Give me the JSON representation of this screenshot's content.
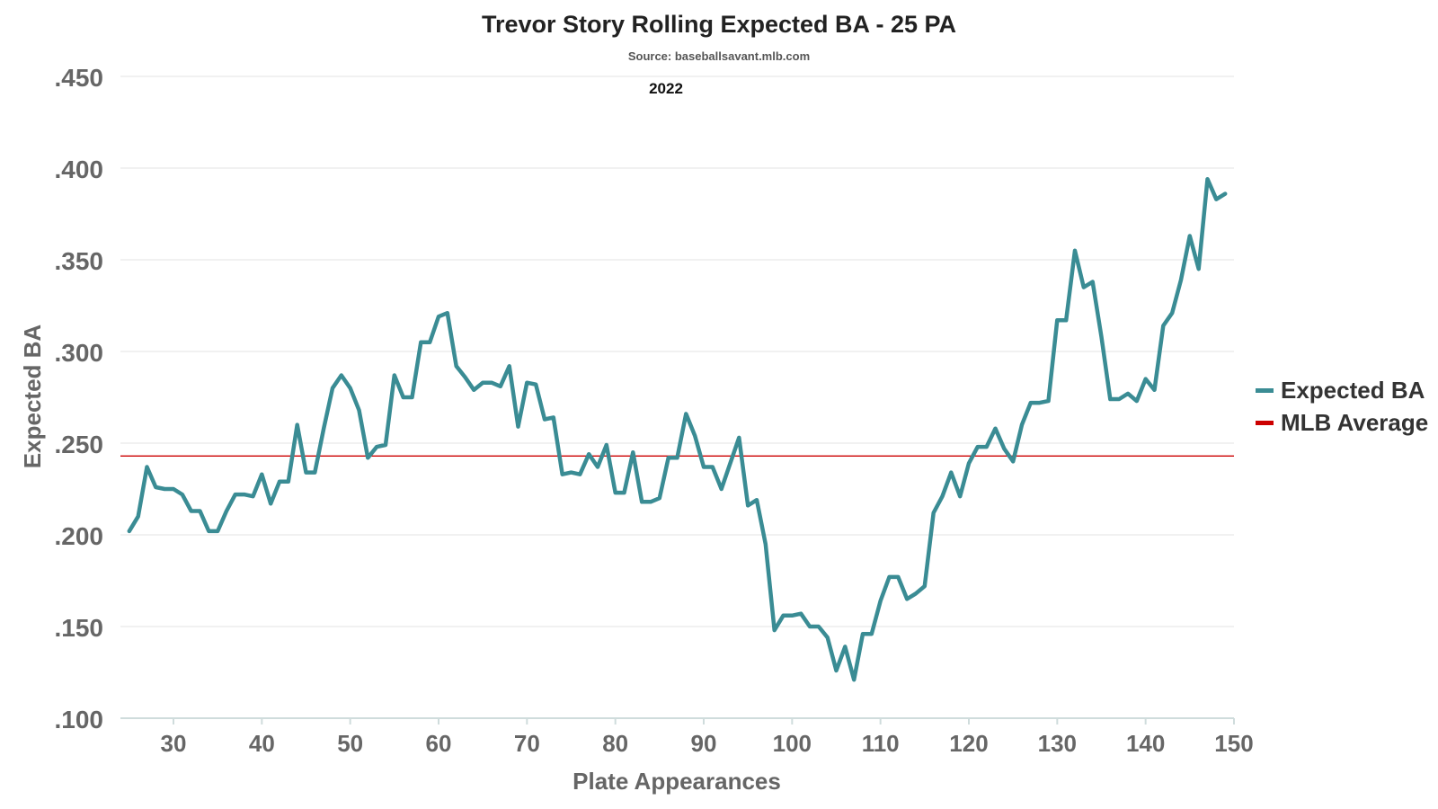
{
  "chart_data": {
    "type": "line",
    "title": "Trevor Story Rolling Expected BA - 25 PA",
    "subtitle": "Source: baseballsavant.mlb.com",
    "annotation": "2022",
    "xlabel": "Plate Appearances",
    "ylabel": "Expected BA",
    "xlim": [
      24,
      150
    ],
    "ylim": [
      0.1,
      0.45
    ],
    "xticks": [
      30,
      40,
      50,
      60,
      70,
      80,
      90,
      100,
      110,
      120,
      130,
      140,
      150
    ],
    "xtick_labels": [
      "30",
      "40",
      "50",
      "60",
      "70",
      "80",
      "90",
      "100",
      "110",
      "120",
      "130",
      "140",
      "150"
    ],
    "yticks": [
      0.1,
      0.15,
      0.2,
      0.25,
      0.3,
      0.35,
      0.4,
      0.45
    ],
    "ytick_labels": [
      ".100",
      ".150",
      ".200",
      ".250",
      ".300",
      ".350",
      ".400",
      ".450"
    ],
    "grid": true,
    "legend_position": "right",
    "series": [
      {
        "name": "Expected BA",
        "color": "#3a8c94",
        "x": [
          25,
          26,
          27,
          28,
          29,
          30,
          31,
          32,
          33,
          34,
          35,
          36,
          37,
          38,
          39,
          40,
          41,
          42,
          43,
          44,
          45,
          46,
          47,
          48,
          49,
          50,
          51,
          52,
          53,
          54,
          55,
          56,
          57,
          58,
          59,
          60,
          61,
          62,
          63,
          64,
          65,
          66,
          67,
          68,
          69,
          70,
          71,
          72,
          73,
          74,
          75,
          76,
          77,
          78,
          79,
          80,
          81,
          82,
          83,
          84,
          85,
          86,
          87,
          88,
          89,
          90,
          91,
          92,
          93,
          94,
          95,
          96,
          97,
          98,
          99,
          100,
          101,
          102,
          103,
          104,
          105,
          106,
          107,
          108,
          109,
          110,
          111,
          112,
          113,
          114,
          115,
          116,
          117,
          118,
          119,
          120,
          121,
          122,
          123,
          124,
          125,
          126,
          127,
          128,
          129,
          130,
          131,
          132,
          133,
          134,
          135,
          136,
          137,
          138,
          139,
          140,
          141,
          142,
          143,
          144,
          145,
          146,
          147,
          148,
          149
        ],
        "values": [
          0.202,
          0.21,
          0.237,
          0.226,
          0.225,
          0.225,
          0.222,
          0.213,
          0.213,
          0.202,
          0.202,
          0.213,
          0.222,
          0.222,
          0.221,
          0.233,
          0.217,
          0.229,
          0.229,
          0.26,
          0.234,
          0.234,
          0.258,
          0.28,
          0.287,
          0.28,
          0.268,
          0.242,
          0.248,
          0.249,
          0.287,
          0.275,
          0.275,
          0.305,
          0.305,
          0.319,
          0.321,
          0.292,
          0.286,
          0.279,
          0.283,
          0.283,
          0.281,
          0.292,
          0.259,
          0.283,
          0.282,
          0.263,
          0.264,
          0.233,
          0.234,
          0.233,
          0.244,
          0.237,
          0.249,
          0.223,
          0.223,
          0.245,
          0.218,
          0.218,
          0.22,
          0.242,
          0.242,
          0.266,
          0.254,
          0.237,
          0.237,
          0.225,
          0.239,
          0.253,
          0.216,
          0.219,
          0.195,
          0.148,
          0.156,
          0.156,
          0.157,
          0.15,
          0.15,
          0.144,
          0.126,
          0.139,
          0.121,
          0.146,
          0.146,
          0.164,
          0.177,
          0.177,
          0.165,
          0.168,
          0.172,
          0.212,
          0.221,
          0.234,
          0.221,
          0.239,
          0.248,
          0.248,
          0.258,
          0.247,
          0.24,
          0.26,
          0.272,
          0.272,
          0.273,
          0.317,
          0.317,
          0.355,
          0.335,
          0.338,
          0.308,
          0.274,
          0.274,
          0.277,
          0.273,
          0.285,
          0.279,
          0.314,
          0.321,
          0.339,
          0.363,
          0.345,
          0.394,
          0.383,
          0.386
        ]
      },
      {
        "name": "MLB Average",
        "color": "#cc0000",
        "x": [
          24,
          150
        ],
        "values": [
          0.243,
          0.243
        ]
      }
    ]
  }
}
